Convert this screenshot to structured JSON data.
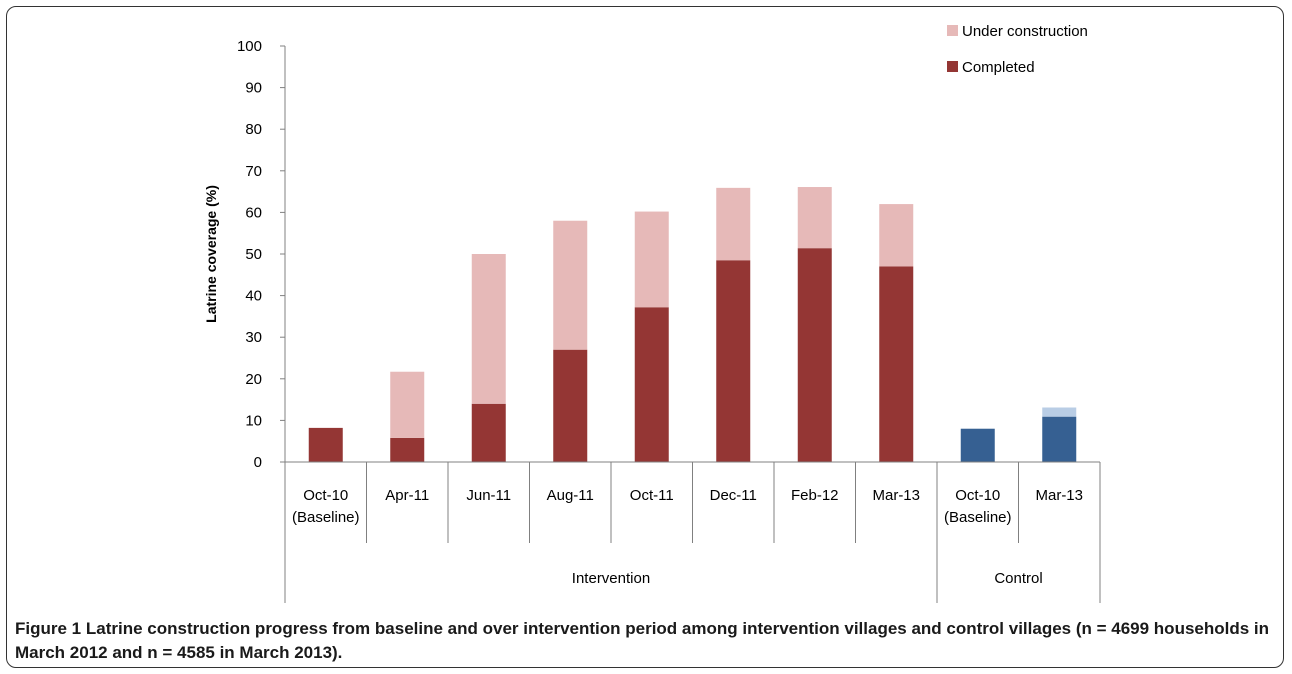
{
  "chart_data": {
    "type": "bar",
    "stacked": true,
    "ylabel": "Latrine coverage (%)",
    "ylim": [
      0,
      100
    ],
    "yticks": [
      0,
      10,
      20,
      30,
      40,
      50,
      60,
      70,
      80,
      90,
      100
    ],
    "grid": false,
    "legend_position": "top-right",
    "categories": [
      {
        "line1": "Oct-10",
        "line2": "(Baseline)",
        "group": "Intervention"
      },
      {
        "line1": "Apr-11",
        "line2": "",
        "group": "Intervention"
      },
      {
        "line1": "Jun-11",
        "line2": "",
        "group": "Intervention"
      },
      {
        "line1": "Aug-11",
        "line2": "",
        "group": "Intervention"
      },
      {
        "line1": "Oct-11",
        "line2": "",
        "group": "Intervention"
      },
      {
        "line1": "Dec-11",
        "line2": "",
        "group": "Intervention"
      },
      {
        "line1": "Feb-12",
        "line2": "",
        "group": "Intervention"
      },
      {
        "line1": "Mar-13",
        "line2": "",
        "group": "Intervention"
      },
      {
        "line1": "Oct-10",
        "line2": "(Baseline)",
        "group": "Control"
      },
      {
        "line1": "Mar-13",
        "line2": "",
        "group": "Control"
      }
    ],
    "groups": [
      "Intervention",
      "Control"
    ],
    "series": [
      {
        "name": "Completed",
        "values": [
          8.2,
          5.8,
          14,
          27,
          37.2,
          48.5,
          51.4,
          47,
          8,
          10.9
        ]
      },
      {
        "name": "Under construction",
        "values": [
          0,
          15.9,
          36,
          31,
          23,
          17.4,
          14.7,
          15,
          0,
          2.2
        ]
      }
    ],
    "colors": {
      "intervention_completed": "#943634",
      "intervention_under_construction": "#e6b9b8",
      "control_completed": "#366092",
      "control_under_construction": "#b9cde5",
      "axis": "#808080"
    }
  },
  "caption": {
    "label": "Figure 1",
    "text": "Latrine construction progress from baseline and over intervention period among intervention villages and control villages (n = 4699 households in March 2012 and n = 4585 in March 2013)."
  }
}
